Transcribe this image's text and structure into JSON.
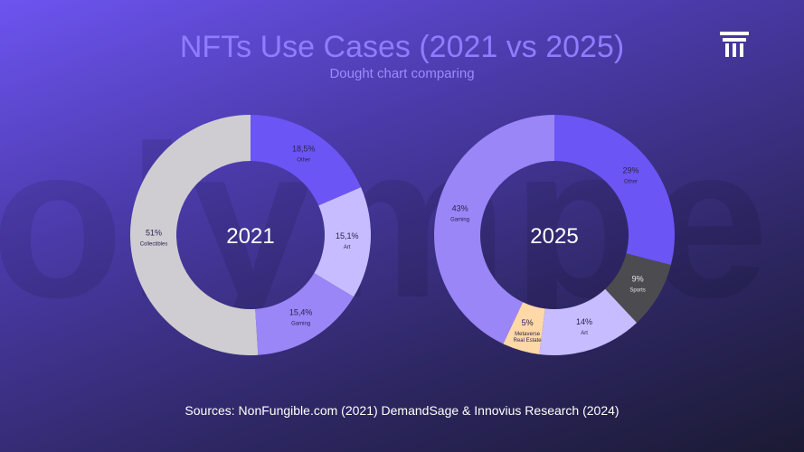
{
  "header": {
    "title": "NFTs Use Cases (2021 vs 2025)",
    "subtitle": "Dought chart comparing"
  },
  "background_word": "olympe",
  "logo": {
    "icon": "pillar-logo-icon"
  },
  "footer": {
    "source": "Sources: NonFungible.com (2021) DemandSage & Innovius Research (2024)"
  },
  "chart_data": [
    {
      "type": "donut",
      "center_label": "2021",
      "slices": [
        {
          "value_label": "18,5%",
          "name": "Other",
          "value": 18.5,
          "color": "#6c55f5"
        },
        {
          "value_label": "15,1%",
          "name": "Art",
          "value": 15.1,
          "color": "#c7bcff"
        },
        {
          "value_label": "15,4%",
          "name": "Gaming",
          "value": 15.4,
          "color": "#9a86f7"
        },
        {
          "value_label": "51%",
          "name": "Collectibles",
          "value": 51,
          "color": "#cfcdd2"
        }
      ]
    },
    {
      "type": "donut",
      "center_label": "2025",
      "slices": [
        {
          "value_label": "29%",
          "name": "Other",
          "value": 29,
          "color": "#6c55f5"
        },
        {
          "value_label": "9%",
          "name": "Sports",
          "value": 9,
          "color": "#4c4c50"
        },
        {
          "value_label": "14%",
          "name": "Art",
          "value": 14,
          "color": "#c7bcff"
        },
        {
          "value_label": "5%",
          "name": "Metaverse Real Estate",
          "value": 5,
          "color": "#ffd8a8"
        },
        {
          "value_label": "43%",
          "name": "Gaming",
          "value": 43,
          "color": "#9a86f7"
        }
      ]
    }
  ]
}
